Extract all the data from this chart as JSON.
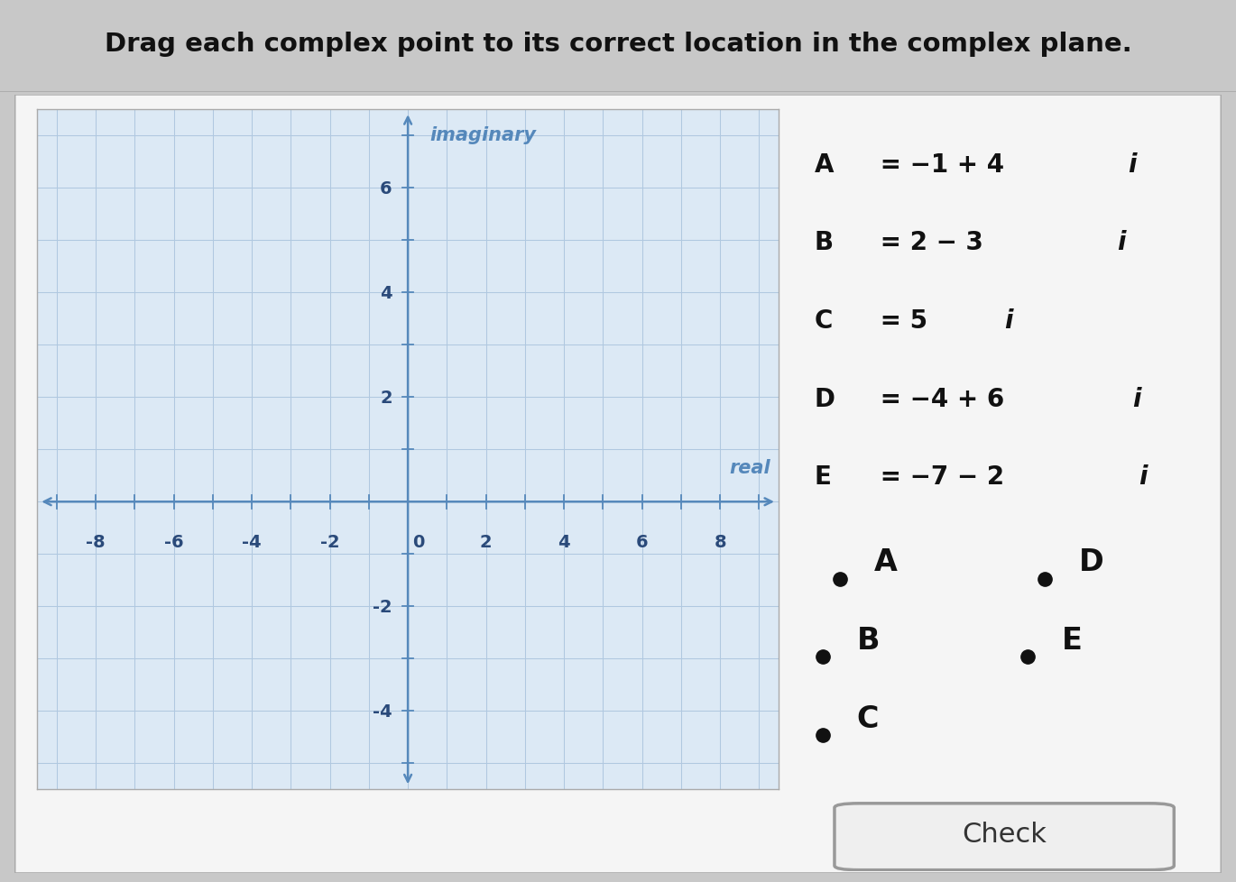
{
  "title": "Drag each complex point to its correct location in the complex plane.",
  "title_fontsize": 21,
  "title_bg": "#e2e2e2",
  "outer_bg": "#c8c8c8",
  "inner_bg": "#f5f5f5",
  "plot_bg": "#dce9f5",
  "grid_color": "#b0c8e0",
  "axis_color": "#5588bb",
  "label_color": "#2a4a7a",
  "xmin": -9.5,
  "xmax": 9.5,
  "ymin": -5.5,
  "ymax": 7.5,
  "xticks": [
    -8,
    -6,
    -4,
    -2,
    2,
    4,
    6,
    8
  ],
  "yticks": [
    -4,
    -2,
    2,
    4,
    6
  ],
  "eq_lines": [
    "A = −1 + 4i",
    "B = 2 − 3i",
    "C = 5i",
    "D = −4 + 6i",
    "E = −7 − 2i"
  ],
  "eq_italic_i": [
    true,
    true,
    true,
    true,
    true
  ],
  "drag_rows": [
    [
      {
        "label": "A",
        "col": 0
      },
      {
        "label": "D",
        "col": 1
      }
    ],
    [
      {
        "label": "B",
        "col": 0
      },
      {
        "label": "E",
        "col": 1
      }
    ],
    [
      {
        "label": "C",
        "col": 0
      }
    ]
  ],
  "check_button_text": "Check",
  "imaginary_label": "imaginary",
  "real_label": "real"
}
